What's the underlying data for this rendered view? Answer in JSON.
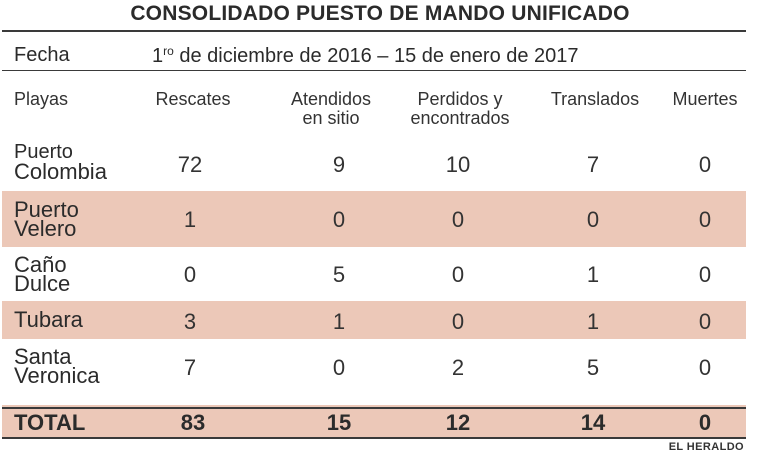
{
  "title": "CONSOLIDADO PUESTO DE MANDO UNIFICADO",
  "fecha": {
    "label": "Fecha",
    "prefix": "1",
    "sup": "ro",
    "range": " de diciembre de 2016 – 15 de enero de 2017"
  },
  "headers": {
    "playas": "Playas",
    "rescates": "Rescates",
    "atendidos_1": "Atendidos",
    "atendidos_2": "en sitio",
    "perdidos_1": "Perdidos y",
    "perdidos_2": "encontrados",
    "translados": "Translados",
    "muertes": "Muertes"
  },
  "rows": [
    {
      "name_1": "Puerto",
      "name_2": "Colombia",
      "rescates": "72",
      "atendidos": "9",
      "perdidos": "10",
      "translados": "7",
      "muertes": "0"
    },
    {
      "name_1": "Puerto",
      "name_2": "Velero",
      "rescates": "1",
      "atendidos": "0",
      "perdidos": "0",
      "translados": "0",
      "muertes": "0"
    },
    {
      "name_1": "Caño",
      "name_2": "Dulce",
      "rescates": "0",
      "atendidos": "5",
      "perdidos": "0",
      "translados": "1",
      "muertes": "0"
    },
    {
      "name_1": "Tubara",
      "rescates": "3",
      "atendidos": "1",
      "perdidos": "0",
      "translados": "1",
      "muertes": "0"
    },
    {
      "name_1": "Santa",
      "name_2": "Veronica",
      "rescates": "7",
      "atendidos": "0",
      "perdidos": "2",
      "translados": "5",
      "muertes": "0"
    }
  ],
  "total": {
    "label": "TOTAL",
    "rescates": "83",
    "atendidos": "15",
    "perdidos": "12",
    "translados": "14",
    "muertes": "0"
  },
  "footer": "EL HERALDO",
  "colors": {
    "shaded_row": "#ecc8b8",
    "text": "#2b2b2b",
    "rule": "#3a3a3a"
  }
}
